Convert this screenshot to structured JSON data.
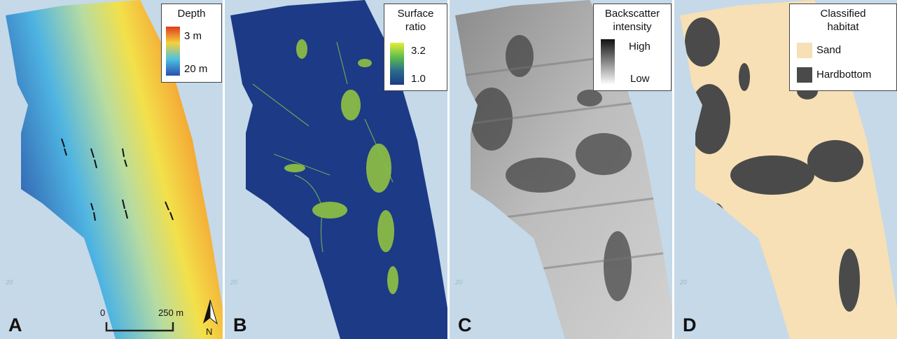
{
  "panels": [
    {
      "label": "A",
      "legend": {
        "title": "Depth",
        "items": [
          "3 m",
          "20 m"
        ]
      },
      "scale_bar": {
        "start": "0",
        "end": "250 m"
      },
      "north": "N",
      "basemap_label": "20"
    },
    {
      "label": "B",
      "legend": {
        "title": "Surface ratio",
        "items": [
          "3.2",
          "1.0"
        ]
      },
      "basemap_label": "20"
    },
    {
      "label": "C",
      "legend": {
        "title": "Backscatter intensity",
        "items": [
          "High",
          "Low"
        ]
      },
      "basemap_label": "20"
    },
    {
      "label": "D",
      "legend": {
        "title": "Classified habitat",
        "items": [
          "Sand",
          "Hardbottom"
        ]
      },
      "basemap_label": "20"
    }
  ]
}
